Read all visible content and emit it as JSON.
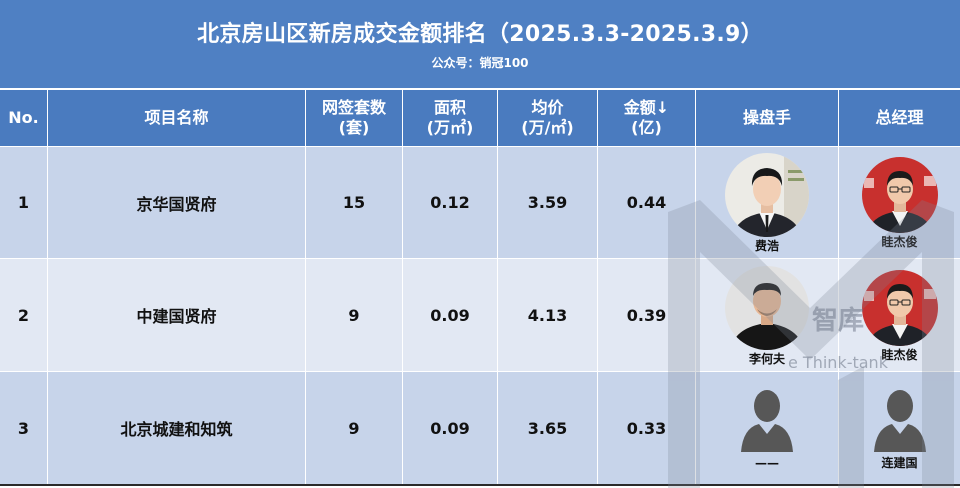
{
  "title": "北京房山区新房成交金额排名（2025.3.3-2025.3.9）",
  "subtitle": "公众号：销冠100",
  "columns": [
    {
      "line1": "No."
    },
    {
      "line1": "项目名称"
    },
    {
      "line1": "网签套数",
      "line2": "(套)"
    },
    {
      "line1": "面积",
      "line2": "(万㎡)"
    },
    {
      "line1": "均价",
      "line2": "(万/㎡)"
    },
    {
      "line1": "金额↓",
      "line2": "(亿)"
    },
    {
      "line1": "操盘手"
    },
    {
      "line1": "总经理"
    }
  ],
  "rows": [
    {
      "no": "1",
      "project": "京华国贤府",
      "units": "15",
      "area": "0.12",
      "avg_price": "3.59",
      "amount": "0.44",
      "operator": "费浩",
      "manager": "眭杰俊"
    },
    {
      "no": "2",
      "project": "中建国贤府",
      "units": "9",
      "area": "0.09",
      "avg_price": "4.13",
      "amount": "0.39",
      "operator": "李何夫",
      "manager": "眭杰俊"
    },
    {
      "no": "3",
      "project": "北京城建和知筑",
      "units": "9",
      "area": "0.09",
      "avg_price": "3.65",
      "amount": "0.33",
      "operator": "——",
      "manager": "连建国"
    }
  ],
  "watermark": {
    "text_cn": "智库",
    "text_en": "e Think-tank"
  },
  "colors": {
    "title_bg": "#4f80c3",
    "header_bg": "#4a7bbf",
    "row_dark": "#c7d4ea",
    "row_light": "#e2e8f3",
    "separator": "#ffffff"
  }
}
